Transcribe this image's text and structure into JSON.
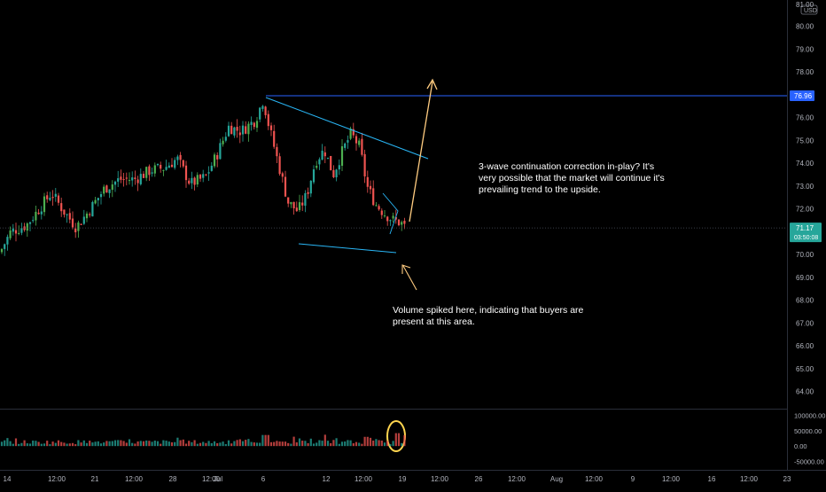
{
  "colors": {
    "background": "#000000",
    "up_candle": "#26a69a",
    "up_candle_alt": "#4caf50",
    "down_candle": "#ef5350",
    "resistance_line": "#2962ff",
    "trendline": "#29b6f6",
    "arrow": "#ffcc80",
    "volume_highlight": "#ffd54f",
    "axis_text": "#b2b5be",
    "price_badge": "#26a69a",
    "level_badge": "#2962ff"
  },
  "chart_data": {
    "type": "candlestick",
    "instrument_currency": "USD",
    "price_axis": {
      "ylim": [
        63.6,
        81.0
      ],
      "ticks": [
        "81.00",
        "80.00",
        "79.00",
        "78.00",
        "77.00",
        "76.00",
        "75.00",
        "74.00",
        "73.00",
        "72.00",
        "71.00",
        "70.00",
        "69.00",
        "68.00",
        "67.00",
        "66.00",
        "65.00",
        "64.00"
      ],
      "tick_values": [
        81,
        80,
        79,
        78,
        77,
        76,
        75,
        74,
        73,
        72,
        71,
        70,
        69,
        68,
        67,
        66,
        65,
        64
      ],
      "top_label": "81.00",
      "currency_label": "USD"
    },
    "current_price": {
      "value": 71.17,
      "label": "71.17",
      "countdown": "03:50:08"
    },
    "resistance_level": {
      "value": 76.96,
      "label": "76.96"
    },
    "time_axis": {
      "ticks": [
        "14",
        "12:00",
        "21",
        "12:00",
        "28",
        "12:00",
        "Jul",
        "6",
        "12",
        "12:00",
        "19",
        "12:00",
        "26",
        "12:00",
        "Aug",
        "12:00",
        "9",
        "12:00",
        "16",
        "12:00",
        "23"
      ],
      "tick_positions": [
        0,
        1,
        2,
        3,
        4,
        5,
        6,
        7,
        8,
        9,
        10,
        11,
        12,
        13,
        14,
        15,
        16,
        17,
        18,
        19,
        20
      ]
    },
    "volume_axis": {
      "ylim": [
        -60000,
        110000
      ],
      "ticks": [
        "100000.00",
        "50000.00",
        "0.00",
        "-50000.00"
      ],
      "tick_values": [
        100000,
        50000,
        0,
        -50000
      ]
    },
    "annotations": [
      "3-wave continuation correction in-play? It's very possible that the market will continue it's prevailing trend to the upside.",
      "Volume spiked here, indicating that buyers are present at this area."
    ],
    "grid": false,
    "legend": "none"
  },
  "notes": {
    "top": "3-wave continuation correction in-play? It's very possible that the market will continue it's prevailing trend to the upside.",
    "bottom": "Volume spiked here, indicating that buyers are present at this area."
  }
}
